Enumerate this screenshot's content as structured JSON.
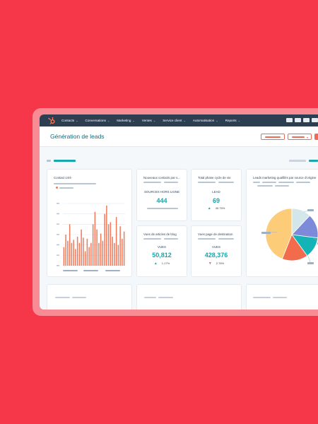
{
  "nav": {
    "items": [
      {
        "label": "Contacts"
      },
      {
        "label": "Conversations"
      },
      {
        "label": "Marketing"
      },
      {
        "label": "Ventes"
      },
      {
        "label": "Service client"
      },
      {
        "label": "Automatisation"
      },
      {
        "label": "Reports"
      }
    ]
  },
  "header": {
    "title": "Génération de leads"
  },
  "widgets": {
    "contacts_created": {
      "title": "Contact créé"
    },
    "new_contacts": {
      "title": "Nouveaux contacts par s...",
      "label": "SOURCES HORS LIGNE",
      "value": "444"
    },
    "lifecycle": {
      "title": "Total phase cycle de vie",
      "label": "LEAD",
      "value": "69",
      "change": "45.75%"
    },
    "blog_views": {
      "title": "Vues de articles de blog",
      "label": "VUES",
      "value": "50,812",
      "change": "1.17%"
    },
    "landing_views": {
      "title": "Vues page de destination",
      "label": "VUES",
      "value": "428,376",
      "change": "2.78%"
    },
    "mql_source": {
      "title": "Leads marketing qualifiés par source d'origine"
    }
  },
  "colors": {
    "brand": "#ff7a59",
    "accent": "#17a7ad",
    "bar": "#f0795b",
    "up": "#1aa7ac",
    "down": "#f2545b"
  },
  "chart_data": [
    {
      "type": "bar",
      "values": [
        18,
        30,
        24,
        40,
        22,
        25,
        16,
        28,
        22,
        35,
        27,
        14,
        26,
        18,
        22,
        40,
        52,
        35,
        22,
        31,
        24,
        50,
        58,
        40,
        42,
        28,
        22,
        47,
        20,
        38,
        26,
        33
      ],
      "ylim": [
        0,
        60
      ],
      "grid": true
    },
    {
      "type": "pie",
      "values": [
        44,
        16,
        13,
        15,
        12
      ],
      "colors": [
        "#fdcc78",
        "#f36b4d",
        "#14b3b6",
        "#7d89d9",
        "#d3e7ea"
      ]
    }
  ]
}
